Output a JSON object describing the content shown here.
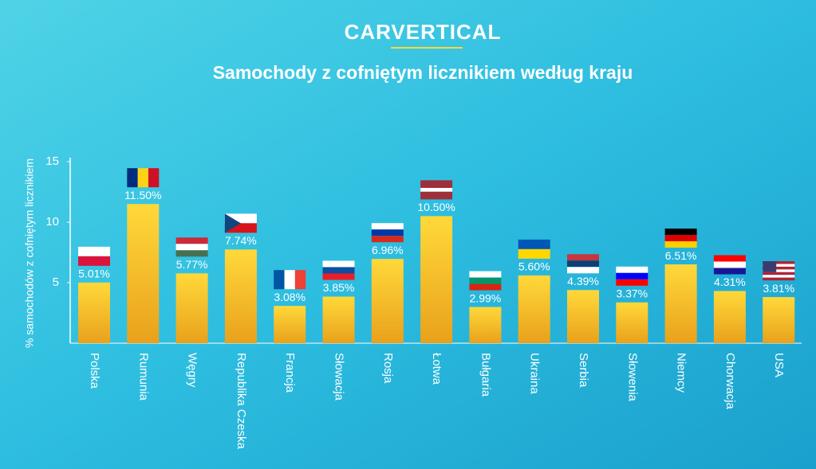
{
  "brand": "CARVERTICAL",
  "chart_data": {
    "type": "bar",
    "title": "Samochody z cofniętym licznikiem według kraju",
    "y_axis_label": "% samochodów z cofniętym licznikiem",
    "categories": [
      "Polska",
      "Rumunia",
      "Węgry",
      "Republika Czeska",
      "Francja",
      "Słowacja",
      "Rosja",
      "Łotwa",
      "Bułgaria",
      "Ukraina",
      "Serbia",
      "Słowenia",
      "Niemcy",
      "Chorwacja",
      "USA"
    ],
    "values": [
      5.01,
      11.5,
      5.77,
      7.74,
      3.08,
      3.85,
      6.96,
      10.5,
      2.99,
      5.6,
      4.39,
      3.37,
      6.51,
      4.31,
      3.81
    ],
    "value_labels": [
      "5.01%",
      "11.50%",
      "5.77%",
      "7.74%",
      "3.08%",
      "3.85%",
      "6.96%",
      "10.50%",
      "2.99%",
      "5.60%",
      "4.39%",
      "3.37%",
      "6.51%",
      "4.31%",
      "3.81%"
    ],
    "color": "#f7c52a",
    "ylim": [
      0,
      15
    ],
    "yticks": [
      5,
      10,
      15
    ],
    "grid": false
  }
}
